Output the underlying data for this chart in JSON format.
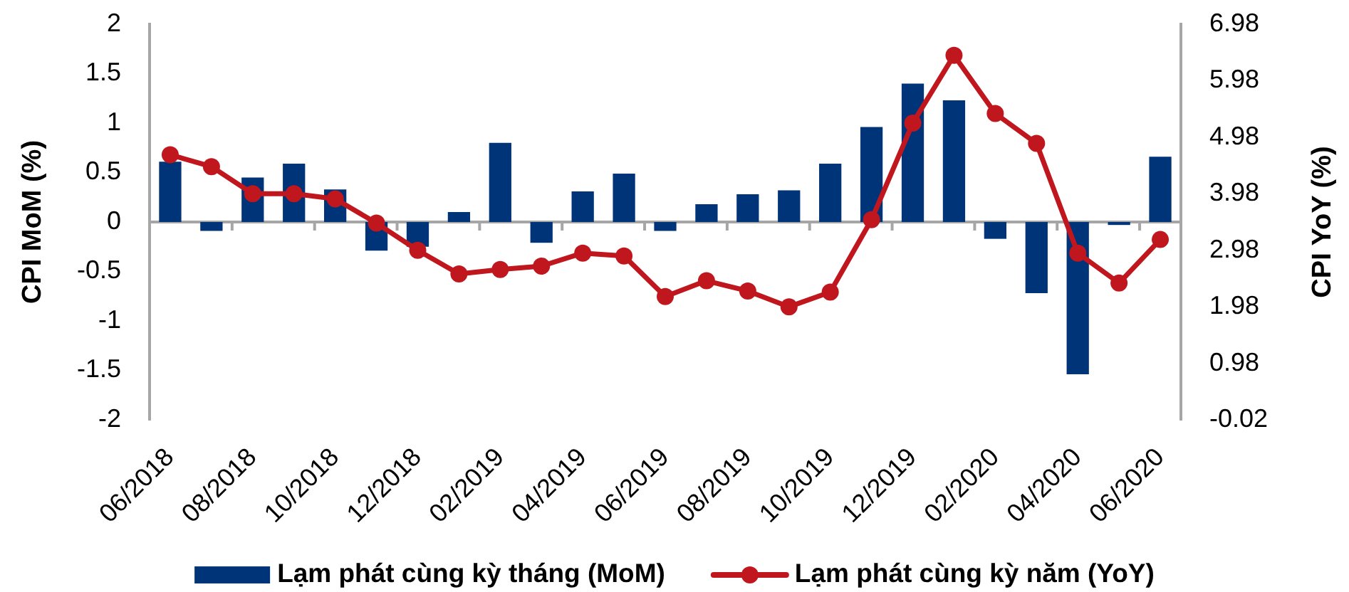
{
  "chart_data": {
    "type": "bar",
    "ylabel": "CPI MoM (%)",
    "y2label": "CPI YoY (%)",
    "categories": [
      "06/2018",
      null,
      "08/2018",
      null,
      "10/2018",
      null,
      "12/2018",
      null,
      "02/2019",
      null,
      "04/2019",
      null,
      "06/2019",
      null,
      "08/2019",
      null,
      "10/2019",
      null,
      "12/2019",
      null,
      "02/2020",
      null,
      "04/2020",
      null,
      "06/2020"
    ],
    "series": [
      {
        "name": "Lạm phát cùng kỳ tháng (MoM)",
        "color": "#003478",
        "values": [
          0.61,
          -0.09,
          0.45,
          0.59,
          0.33,
          -0.29,
          -0.25,
          0.1,
          0.8,
          -0.21,
          0.31,
          0.49,
          -0.09,
          0.18,
          0.28,
          0.32,
          0.59,
          0.96,
          1.4,
          1.23,
          -0.17,
          -0.72,
          -1.54,
          -0.03,
          0.66
        ]
      },
      {
        "name": "Lạm phát cùng kỳ năm (YoY)",
        "type": "line",
        "axis": "y2",
        "color": "#c0171f",
        "values": [
          4.67,
          4.46,
          3.98,
          3.98,
          3.89,
          3.46,
          2.98,
          2.56,
          2.64,
          2.7,
          2.93,
          2.88,
          2.16,
          2.44,
          2.26,
          1.98,
          2.24,
          3.52,
          5.23,
          6.43,
          5.4,
          4.87,
          2.93,
          2.4,
          3.17
        ]
      }
    ],
    "ylim": [
      -2,
      2
    ],
    "yticks": [
      -2,
      -1.5,
      -1,
      -0.5,
      0,
      0.5,
      1,
      1.5,
      2
    ],
    "y2lim": [
      -0.02,
      6.98
    ],
    "y2ticks": [
      -0.02,
      0.98,
      1.98,
      2.98,
      3.98,
      4.98,
      5.98,
      6.98
    ],
    "marker": "circle",
    "legend": "bottom"
  }
}
